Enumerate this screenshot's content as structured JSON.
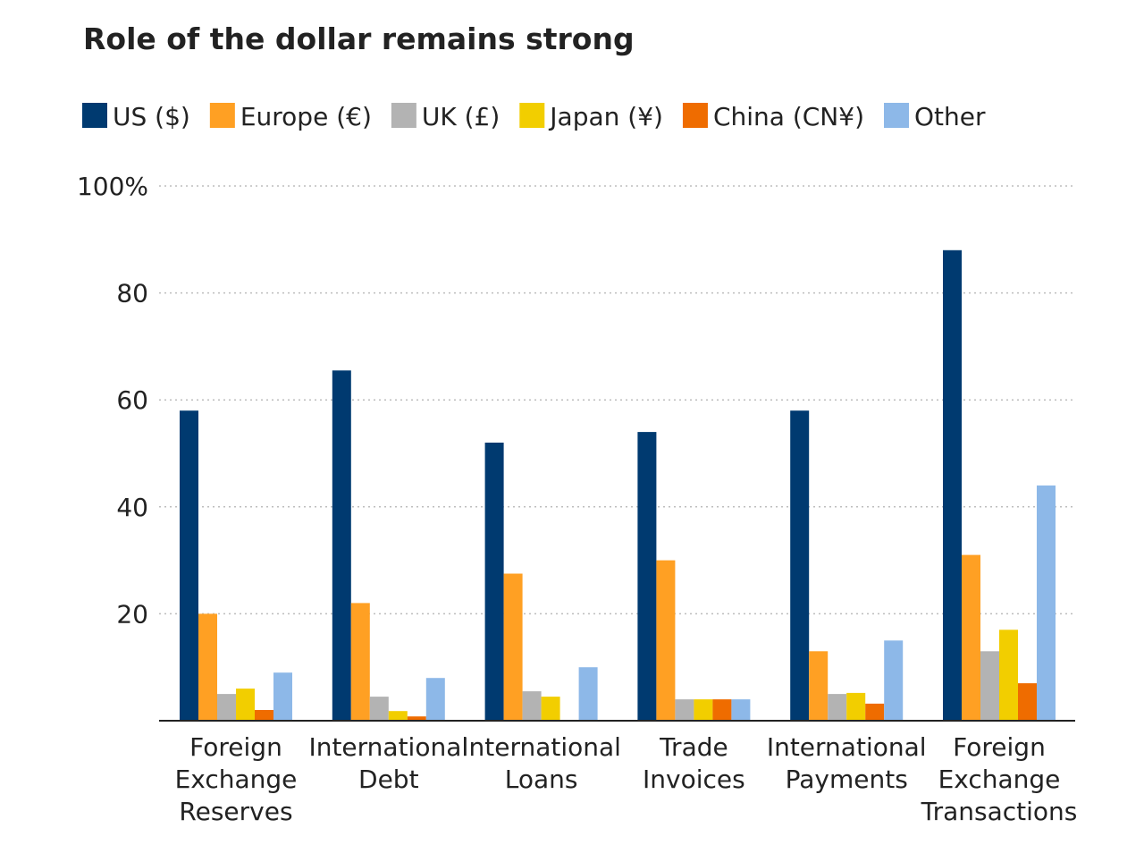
{
  "chart_data": {
    "type": "bar",
    "title": "Role of the dollar remains strong",
    "xlabel": "",
    "ylabel": "",
    "ylim": [
      0,
      100
    ],
    "yticks": [
      {
        "value": 20,
        "label": "20"
      },
      {
        "value": 40,
        "label": "40"
      },
      {
        "value": 60,
        "label": "60"
      },
      {
        "value": 80,
        "label": "80"
      },
      {
        "value": 100,
        "label": "100%"
      }
    ],
    "grid": true,
    "legend_position": "top-left",
    "categories": [
      [
        "Foreign",
        "Exchange",
        "Reserves"
      ],
      [
        "International",
        "Debt"
      ],
      [
        "International",
        "Loans"
      ],
      [
        "Trade",
        "Invoices"
      ],
      [
        "International",
        "Payments"
      ],
      [
        "Foreign",
        "Exchange",
        "Transactions"
      ]
    ],
    "series": [
      {
        "name": "US ($)",
        "color": "#003A70",
        "values": [
          58,
          65.5,
          52,
          54,
          58,
          88
        ]
      },
      {
        "name": "Europe (€)",
        "color": "#FFA023",
        "values": [
          20,
          22,
          27.5,
          30,
          13,
          31
        ]
      },
      {
        "name": "UK (£)",
        "color": "#B3B3B3",
        "values": [
          5,
          4.5,
          5.5,
          4,
          5,
          13
        ]
      },
      {
        "name": "Japan (¥)",
        "color": "#F2CE00",
        "values": [
          6,
          1.8,
          4.5,
          4,
          5.2,
          17
        ]
      },
      {
        "name": "China (CN¥)",
        "color": "#EF6C00",
        "values": [
          2,
          0.8,
          0,
          4,
          3.2,
          7
        ]
      },
      {
        "name": "Other",
        "color": "#8DB8E8",
        "values": [
          9,
          8,
          10,
          4,
          15,
          44
        ]
      }
    ]
  }
}
